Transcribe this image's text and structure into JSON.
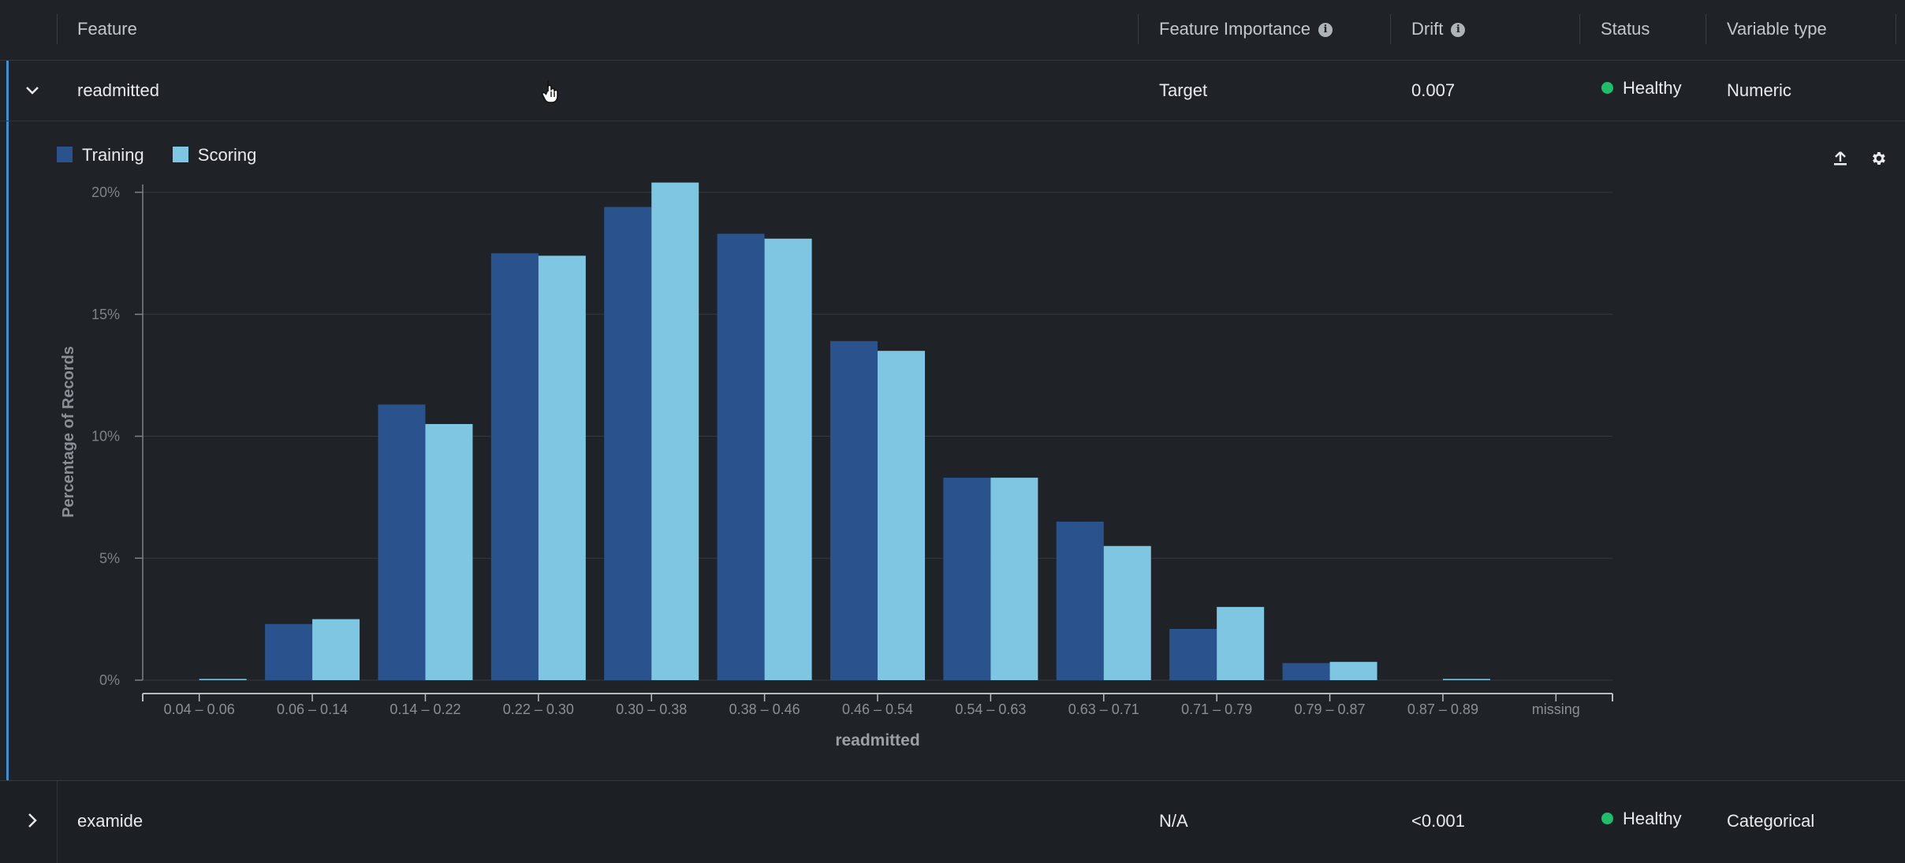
{
  "header": {
    "feature": "Feature",
    "importance": "Feature Importance",
    "drift": "Drift",
    "status": "Status",
    "variable_type": "Variable type"
  },
  "rows": [
    {
      "feature": "readmitted",
      "importance": "Target",
      "drift": "0.007",
      "status": "Healthy",
      "variable_type": "Numeric",
      "expanded": true
    },
    {
      "feature": "examide",
      "importance": "N/A",
      "drift": "<0.001",
      "status": "Healthy",
      "variable_type": "Categorical",
      "expanded": false
    }
  ],
  "colors": {
    "training": "#2a528c",
    "scoring": "#7ec6e2",
    "healthy": "#1fbf6a",
    "accent": "#3d8fd6"
  },
  "chart_data": {
    "type": "bar",
    "title": "",
    "xlabel": "readmitted",
    "ylabel": "Percentage of Records",
    "ylim": [
      0,
      20
    ],
    "yticks": [
      "0%",
      "5%",
      "10%",
      "15%",
      "20%"
    ],
    "legend": [
      "Training",
      "Scoring"
    ],
    "categories": [
      "0.04 – 0.06",
      "0.06 – 0.14",
      "0.14 – 0.22",
      "0.22 – 0.30",
      "0.30 – 0.38",
      "0.38 – 0.46",
      "0.46 – 0.54",
      "0.54 – 0.63",
      "0.63 – 0.71",
      "0.71 – 0.79",
      "0.79 – 0.87",
      "0.87 – 0.89",
      "missing"
    ],
    "series": [
      {
        "name": "Training",
        "values": [
          0,
          2.3,
          11.3,
          17.5,
          19.4,
          18.3,
          13.9,
          8.3,
          6.5,
          2.1,
          0.7,
          0,
          0
        ]
      },
      {
        "name": "Scoring",
        "values": [
          0.05,
          2.5,
          10.5,
          17.4,
          20.4,
          18.1,
          13.5,
          8.3,
          5.5,
          3.0,
          0.75,
          0.05,
          0
        ]
      }
    ]
  }
}
